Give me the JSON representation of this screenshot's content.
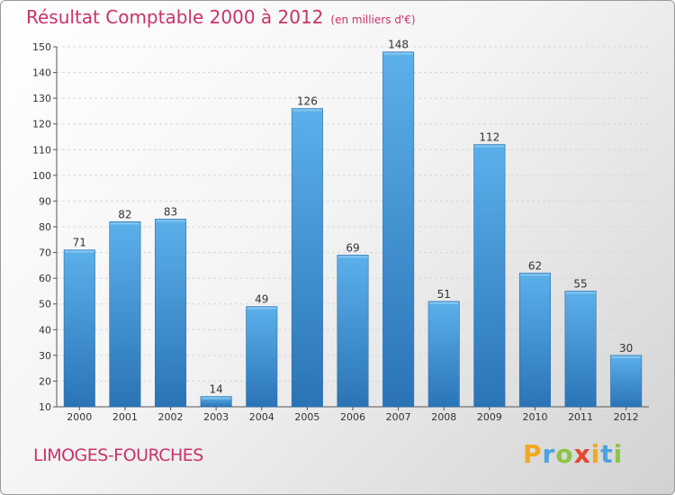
{
  "header": {
    "title": "Résultat Comptable 2000 à 2012",
    "subtitle": "(en milliers d'€)"
  },
  "footer": {
    "commune": "LIMOGES-FOURCHES",
    "logo_letters": [
      "P",
      "r",
      "o",
      "x",
      "i",
      "t",
      "i"
    ],
    "logo_colors": [
      "#f2a91e",
      "#4aa3df",
      "#8cc63f",
      "#e8452c",
      "#f2a91e",
      "#4aa3df",
      "#8cc63f"
    ]
  },
  "chart_data": {
    "type": "bar",
    "title": "Résultat Comptable 2000 à 2012",
    "subtitle": "(en milliers d'€)",
    "xlabel": "",
    "ylabel": "",
    "categories": [
      "2000",
      "2001",
      "2002",
      "2003",
      "2004",
      "2005",
      "2006",
      "2007",
      "2008",
      "2009",
      "2010",
      "2011",
      "2012"
    ],
    "values": [
      71,
      82,
      83,
      14,
      49,
      126,
      69,
      148,
      51,
      112,
      62,
      55,
      30
    ],
    "ylim": [
      10,
      150
    ],
    "yticks": [
      10,
      20,
      30,
      40,
      50,
      60,
      70,
      80,
      90,
      100,
      110,
      120,
      130,
      140,
      150
    ],
    "grid": true,
    "bar_color": "#4a9fdf",
    "bar_color_dark": "#2e78bb"
  }
}
